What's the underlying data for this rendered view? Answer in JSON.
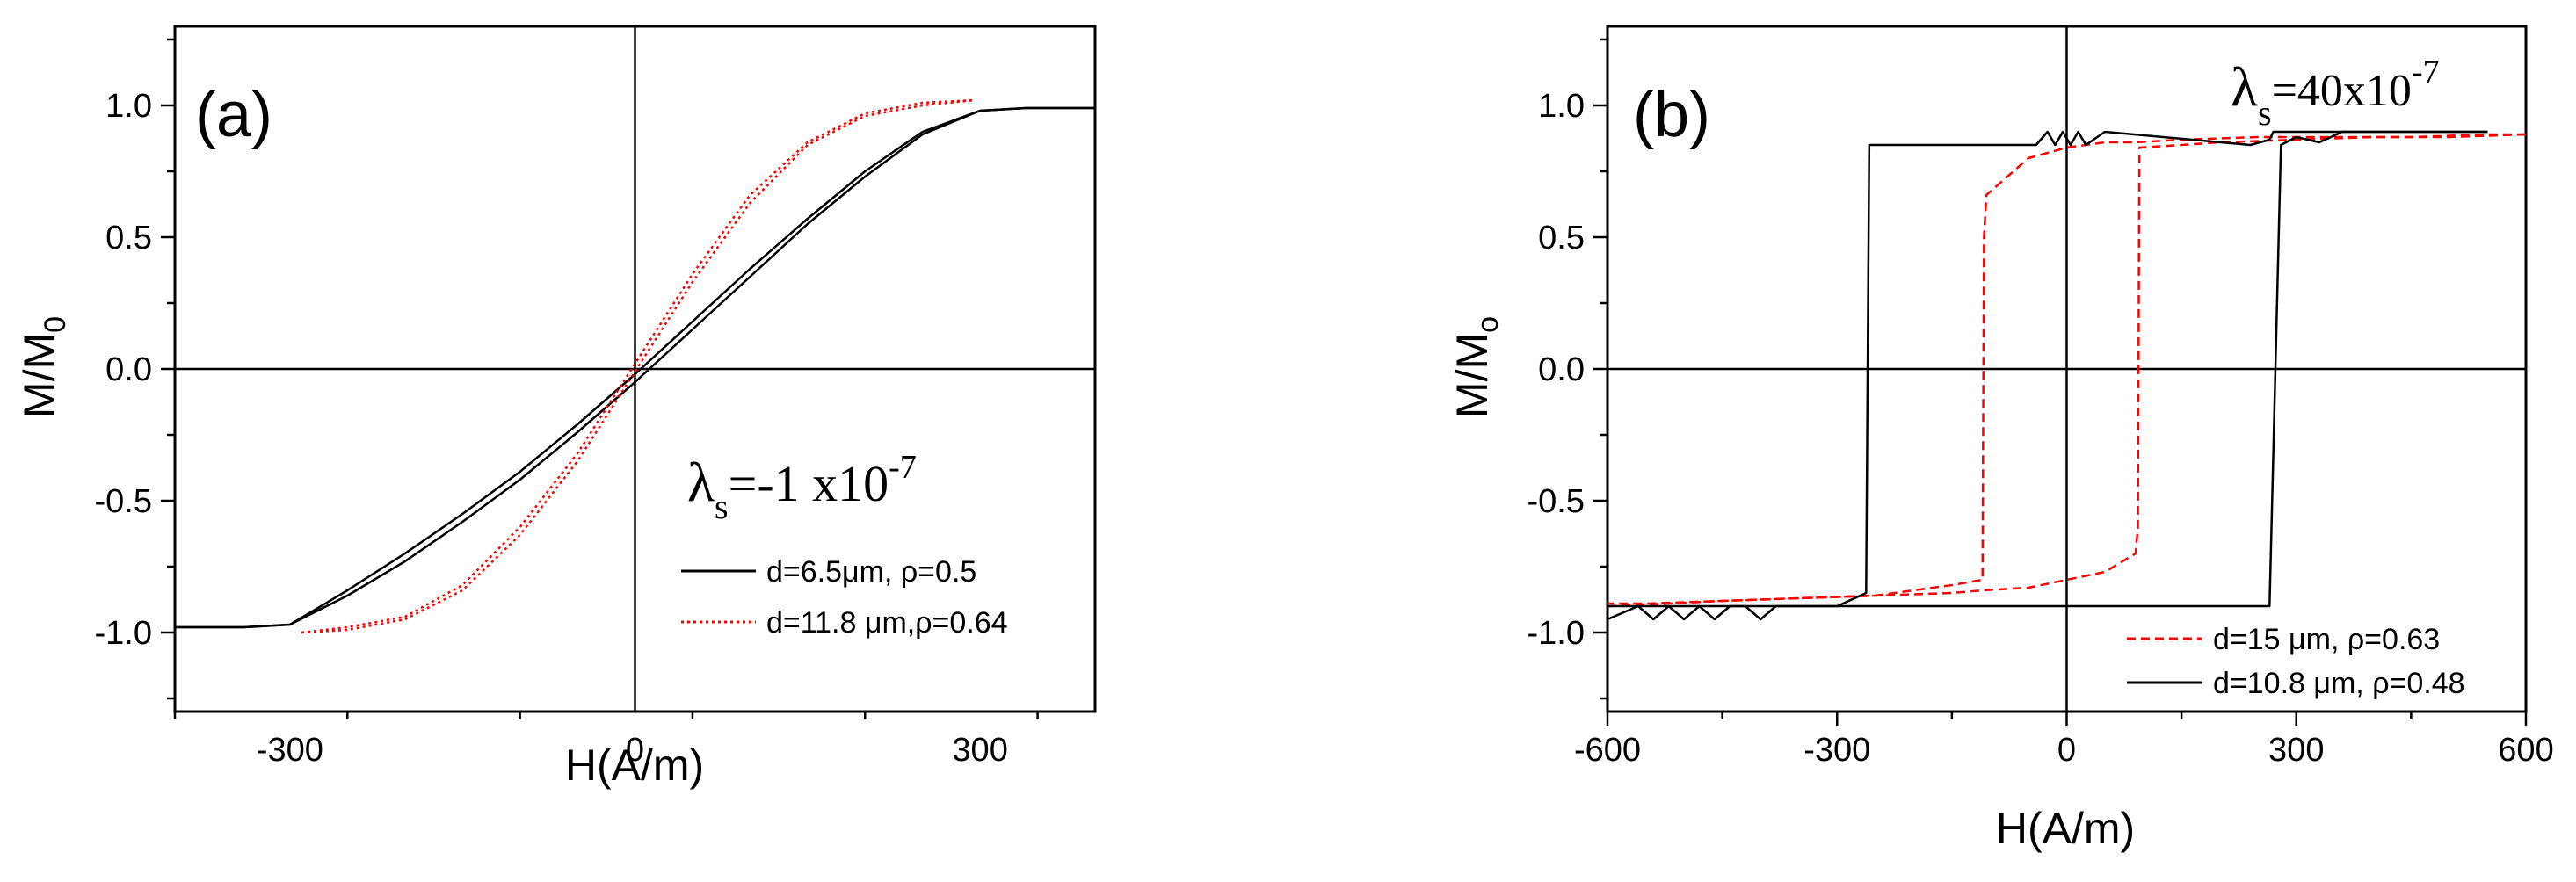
{
  "chart_data": [
    {
      "type": "line",
      "panel_label": "(a)",
      "xlabel": "H(A/m)",
      "ylabel": {
        "main": "M/M",
        "sub": "0"
      },
      "xlim": [
        -400,
        400
      ],
      "ylim": [
        -1.3,
        1.3
      ],
      "xticks": [
        {
          "value": -300,
          "label": "-300"
        },
        {
          "value": 0,
          "label": "0"
        },
        {
          "value": 300,
          "label": "300"
        }
      ],
      "yticks": [
        {
          "value": 1.0,
          "label": "1.0"
        },
        {
          "value": 0.5,
          "label": "0.5"
        },
        {
          "value": 0.0,
          "label": "0.0"
        },
        {
          "value": -0.5,
          "label": "-0.5"
        },
        {
          "value": -1.0,
          "label": "-1.0"
        }
      ],
      "annotation": {
        "symbol": "λ",
        "sub": "s",
        "text": "=-1 x10",
        "sup": "-7"
      },
      "series": [
        {
          "name": "d=6.5μm, ρ=0.5",
          "color": "#000000",
          "style": "solid",
          "branches": [
            {
              "x": [
                -400,
                -340,
                -300,
                -250,
                -200,
                -150,
                -100,
                -50,
                0,
                50,
                100,
                150,
                200,
                250,
                300,
                340,
                400
              ],
              "y": [
                -0.98,
                -0.98,
                -0.97,
                -0.84,
                -0.7,
                -0.55,
                -0.39,
                -0.21,
                -0.02,
                0.18,
                0.38,
                0.57,
                0.75,
                0.9,
                0.98,
                0.99,
                0.99
              ]
            },
            {
              "x": [
                -400,
                -340,
                -300,
                -250,
                -200,
                -150,
                -100,
                -50,
                0,
                50,
                100,
                150,
                200,
                250,
                300,
                340,
                400
              ],
              "y": [
                -0.98,
                -0.98,
                -0.97,
                -0.86,
                -0.73,
                -0.58,
                -0.42,
                -0.24,
                -0.05,
                0.15,
                0.35,
                0.55,
                0.73,
                0.89,
                0.98,
                0.99,
                0.99
              ]
            }
          ]
        },
        {
          "name": "d=11.8 μm,ρ=0.64",
          "color": "#ff0000",
          "style": "dotted",
          "branches": [
            {
              "x": [
                -290,
                -250,
                -200,
                -150,
                -100,
                -50,
                0,
                50,
                100,
                150,
                200,
                250,
                295
              ],
              "y": [
                -1.0,
                -0.98,
                -0.94,
                -0.82,
                -0.6,
                -0.32,
                0.02,
                0.36,
                0.66,
                0.86,
                0.97,
                1.01,
                1.02
              ]
            },
            {
              "x": [
                -290,
                -250,
                -200,
                -150,
                -100,
                -50,
                0,
                50,
                100,
                150,
                200,
                250,
                295
              ],
              "y": [
                -1.0,
                -0.99,
                -0.95,
                -0.84,
                -0.63,
                -0.35,
                -0.01,
                0.33,
                0.63,
                0.85,
                0.96,
                1.0,
                1.02
              ]
            }
          ]
        }
      ]
    },
    {
      "type": "line",
      "panel_label": "(b)",
      "xlabel": "H(A/m)",
      "ylabel": {
        "main": "M/M",
        "sub": "o"
      },
      "xlim": [
        -600,
        600
      ],
      "ylim": [
        -1.3,
        1.3
      ],
      "xticks": [
        {
          "value": -600,
          "label": "-600"
        },
        {
          "value": -300,
          "label": "-300"
        },
        {
          "value": 0,
          "label": "0"
        },
        {
          "value": 300,
          "label": "300"
        },
        {
          "value": 600,
          "label": "600"
        }
      ],
      "yticks": [
        {
          "value": 1.0,
          "label": "1.0"
        },
        {
          "value": 0.5,
          "label": "0.5"
        },
        {
          "value": 0.0,
          "label": "0.0"
        },
        {
          "value": -0.5,
          "label": "-0.5"
        },
        {
          "value": -1.0,
          "label": "-1.0"
        }
      ],
      "annotation": {
        "symbol": "λ",
        "sub": "s",
        "text": "=40x10",
        "sup": "-7"
      },
      "series": [
        {
          "name": "d=15 μm, ρ=0.63",
          "color": "#ff0000",
          "style": "dashed",
          "branches": [
            {
              "x": [
                -600,
                -520,
                -450,
                -350,
                -250,
                -150,
                -110,
                -108,
                -105,
                -50,
                0,
                50,
                90,
                150,
                250,
                350,
                450,
                550,
                600
              ],
              "y": [
                -0.9,
                -0.89,
                -0.88,
                -0.87,
                -0.86,
                -0.82,
                -0.8,
                0.5,
                0.66,
                0.8,
                0.84,
                0.86,
                0.86,
                0.87,
                0.88,
                0.88,
                0.88,
                0.89,
                0.89
              ]
            },
            {
              "x": [
                600,
                500,
                400,
                300,
                200,
                150,
                95,
                93,
                90,
                50,
                0,
                -50,
                -110,
                -150,
                -250,
                -350,
                -450,
                -550,
                -600
              ],
              "y": [
                0.89,
                0.88,
                0.88,
                0.87,
                0.86,
                0.85,
                0.84,
                -0.6,
                -0.7,
                -0.77,
                -0.8,
                -0.83,
                -0.84,
                -0.85,
                -0.86,
                -0.87,
                -0.88,
                -0.89,
                -0.89
              ]
            }
          ]
        },
        {
          "name": "d=10.8 μm, ρ=0.48",
          "color": "#000000",
          "style": "solid",
          "branches": [
            {
              "x": [
                -600,
                -560,
                -540,
                -520,
                -500,
                -480,
                -460,
                -440,
                -420,
                -400,
                -380,
                -360,
                -340,
                -300,
                -265,
                -255,
                230,
                265,
                280,
                300,
                330,
                360,
                400,
                450,
                550
              ],
              "y": [
                -0.95,
                -0.9,
                -0.95,
                -0.9,
                -0.95,
                -0.9,
                -0.95,
                -0.9,
                -0.9,
                -0.95,
                -0.9,
                -0.9,
                -0.9,
                -0.9,
                -0.9,
                -0.9,
                -0.9,
                -0.9,
                0.85,
                0.88,
                0.86,
                0.9,
                0.9,
                0.9,
                0.9
              ]
            },
            {
              "x": [
                550,
                450,
                300,
                270,
                265,
                240,
                50,
                25,
                15,
                5,
                -5,
                -15,
                -25,
                -40,
                -110,
                -150,
                -250,
                -258,
                -262,
                -300,
                -350,
                -600
              ],
              "y": [
                0.9,
                0.9,
                0.9,
                0.9,
                0.87,
                0.85,
                0.9,
                0.85,
                0.9,
                0.85,
                0.9,
                0.85,
                0.9,
                0.85,
                0.85,
                0.85,
                0.85,
                0.85,
                -0.85,
                -0.9,
                -0.9,
                -0.9
              ]
            }
          ]
        }
      ]
    }
  ]
}
